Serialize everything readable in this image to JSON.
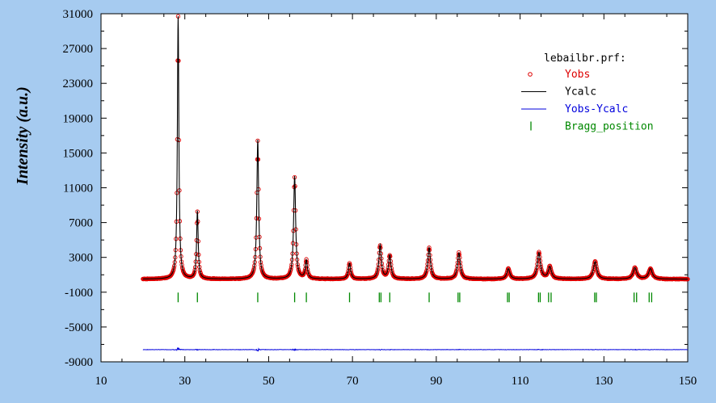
{
  "chart_data": {
    "type": "line",
    "title": "",
    "xlabel": "",
    "ylabel": "Intensity (a.u.)",
    "xlim": [
      10,
      150
    ],
    "ylim": [
      -9000,
      31000
    ],
    "x_ticks": [
      10,
      30,
      50,
      70,
      90,
      110,
      130,
      150
    ],
    "y_ticks": [
      31000,
      27000,
      23000,
      19000,
      15000,
      11000,
      7000,
      3000,
      -1000,
      -5000,
      -9000
    ],
    "grid": false,
    "legend": {
      "title": "lebailbr.prf:",
      "placement": "top-right",
      "entries": [
        {
          "name": "Yobs",
          "color": "#dd0000",
          "marker": "circle"
        },
        {
          "name": "Ycalc",
          "color": "#000000",
          "marker": "line"
        },
        {
          "name": "Yobs-Ycalc",
          "color": "#0000dd",
          "marker": "line"
        },
        {
          "name": "Bragg_position",
          "color": "#008800",
          "marker": "bar"
        }
      ]
    },
    "background_level": 500,
    "x_range": [
      20,
      150
    ],
    "series": [
      {
        "name": "Yobs",
        "peaks": [
          {
            "x": 28.4,
            "height": 30200
          },
          {
            "x": 33.0,
            "height": 7800
          },
          {
            "x": 47.4,
            "height": 16000
          },
          {
            "x": 56.2,
            "height": 11800
          },
          {
            "x": 59.0,
            "height": 2100
          },
          {
            "x": 69.3,
            "height": 1800
          },
          {
            "x": 76.6,
            "height": 3900
          },
          {
            "x": 78.9,
            "height": 2700
          },
          {
            "x": 88.3,
            "height": 3600
          },
          {
            "x": 95.4,
            "height": 3000
          },
          {
            "x": 107.2,
            "height": 1200
          },
          {
            "x": 114.5,
            "height": 3000
          },
          {
            "x": 117.1,
            "height": 1400
          },
          {
            "x": 127.9,
            "height": 2000
          },
          {
            "x": 137.4,
            "height": 1300
          },
          {
            "x": 141.1,
            "height": 1200
          }
        ]
      },
      {
        "name": "Ycalc"
      },
      {
        "name": "Yobs-Ycalc",
        "offset": -7600
      }
    ],
    "bragg_positions": [
      28.4,
      33.0,
      47.4,
      56.2,
      59.0,
      69.3,
      76.4,
      76.8,
      78.9,
      88.3,
      95.2,
      95.6,
      107.0,
      107.4,
      114.4,
      114.8,
      116.8,
      117.4,
      127.8,
      128.2,
      137.2,
      137.8,
      140.8,
      141.4
    ],
    "bragg_y": -1600
  }
}
